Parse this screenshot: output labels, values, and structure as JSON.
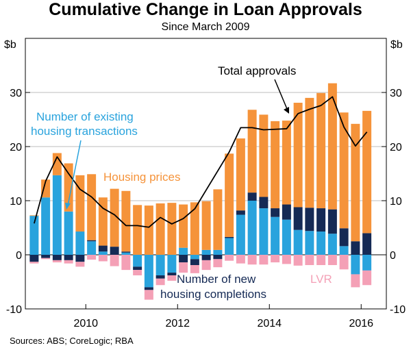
{
  "chart_data": {
    "type": "bar",
    "title": "Cumulative Change in Loan Approvals",
    "subtitle": "Since March 2009",
    "unit_left": "$b",
    "unit_right": "$b",
    "ylim": [
      -10,
      40
    ],
    "yticks": [
      -10,
      0,
      10,
      20,
      30
    ],
    "xticks": [
      {
        "label": "2010",
        "q": 5
      },
      {
        "label": "2012",
        "q": 13
      },
      {
        "label": "2014",
        "q": 21
      },
      {
        "label": "2016",
        "q": 29
      }
    ],
    "source": "Sources: ABS; CoreLogic; RBA",
    "colors": {
      "existing": "#29a3dd",
      "prices": "#f5933a",
      "new": "#152a55",
      "lvr": "#f4a0b6",
      "total": "#000000"
    },
    "annotations": {
      "existing": [
        "Number of existing",
        "housing transactions"
      ],
      "prices": "Housing prices",
      "total": "Total approvals",
      "new": [
        "Number of new",
        "housing completions"
      ],
      "lvr": "LVR"
    },
    "series": [
      {
        "name": "Number of existing housing transactions",
        "key": "existing",
        "values": [
          7.2,
          10.6,
          14.7,
          8.0,
          4.3,
          2.5,
          0.6,
          0.0,
          0.4,
          -2.2,
          -6.0,
          -3.8,
          -3.3,
          1.3,
          -0.8,
          0.9,
          0.9,
          3.1,
          7.4,
          10.0,
          8.6,
          7.0,
          6.5,
          4.6,
          4.4,
          4.3,
          3.9,
          1.6,
          -3.6,
          -2.9
        ]
      },
      {
        "name": "Number of new housing completions",
        "key": "new",
        "values": [
          -1.3,
          -0.6,
          -1.0,
          -1.0,
          -1.3,
          0.2,
          1.1,
          1.5,
          0.2,
          -0.6,
          -0.5,
          -0.6,
          -0.5,
          -1.4,
          -1.1,
          -1.0,
          -0.8,
          0.2,
          0.8,
          1.5,
          2.1,
          1.6,
          2.8,
          4.2,
          4.3,
          4.3,
          4.5,
          3.3,
          2.5,
          4.0
        ]
      },
      {
        "name": "Housing prices",
        "key": "prices",
        "values": [
          0.1,
          3.3,
          4.1,
          8.9,
          10.4,
          12.2,
          8.9,
          10.7,
          11.2,
          9.2,
          9.1,
          9.5,
          9.6,
          8.0,
          9.7,
          9.0,
          11.2,
          15.4,
          13.3,
          15.3,
          15.2,
          16.1,
          15.5,
          19.3,
          20.3,
          21.3,
          23.3,
          21.4,
          21.7,
          22.6
        ]
      },
      {
        "name": "LVR",
        "key": "lvr",
        "values": [
          -0.3,
          -0.2,
          -0.4,
          -0.6,
          -0.9,
          -0.9,
          -1.2,
          -2.1,
          -2.8,
          -1.0,
          -1.8,
          -1.2,
          -1.0,
          -1.9,
          -1.5,
          -1.8,
          -1.5,
          -1.1,
          -1.6,
          -1.8,
          -1.8,
          -1.4,
          -1.7,
          -2.0,
          -1.9,
          -1.9,
          -1.9,
          -2.7,
          -2.4,
          -2.7
        ]
      },
      {
        "name": "Total approvals",
        "key": "total",
        "type": "line",
        "values": [
          5.8,
          13.6,
          18.1,
          15.0,
          12.1,
          10.7,
          8.6,
          7.4,
          5.4,
          5.4,
          5.1,
          6.9,
          5.7,
          6.7,
          8.5,
          12.0,
          15.5,
          19.0,
          23.5,
          23.5,
          23.1,
          23.2,
          23.3,
          26.1,
          26.9,
          27.6,
          29.2,
          23.6,
          20.1,
          22.7
        ]
      }
    ]
  }
}
